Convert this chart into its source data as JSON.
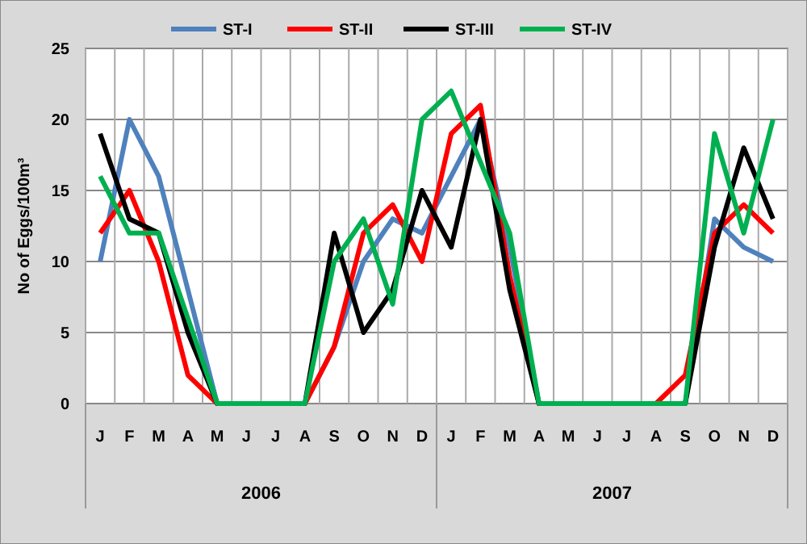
{
  "chart_data": {
    "type": "line",
    "ylabel": "No of Eggs/100m³",
    "categories": [
      "J",
      "F",
      "M",
      "A",
      "M",
      "J",
      "J",
      "A",
      "S",
      "O",
      "N",
      "D",
      "J",
      "F",
      "M",
      "A",
      "M",
      "J",
      "J",
      "A",
      "S",
      "O",
      "N",
      "D"
    ],
    "annotations": [
      "2006",
      "2007"
    ],
    "ylim": [
      0,
      25
    ],
    "yticks": [
      0,
      5,
      10,
      15,
      20,
      25
    ],
    "grid": true,
    "legend": "top",
    "marker": "none",
    "line_style": "solid",
    "series": [
      {
        "name": "ST-I",
        "color": "#4f81bd",
        "values": [
          10,
          20,
          16,
          8,
          0,
          0,
          0,
          0,
          4,
          10,
          13,
          12,
          16,
          20,
          11,
          0,
          0,
          0,
          0,
          0,
          0,
          13,
          11,
          10
        ]
      },
      {
        "name": "ST-II",
        "color": "#ff0000",
        "values": [
          12,
          15,
          10,
          2,
          0,
          0,
          0,
          0,
          4,
          12,
          14,
          10,
          19,
          21,
          9,
          0,
          0,
          0,
          0,
          0,
          2,
          12,
          14,
          12
        ]
      },
      {
        "name": "ST-III",
        "color": "#000000",
        "values": [
          19,
          13,
          12,
          5,
          0,
          0,
          0,
          0,
          12,
          5,
          8,
          15,
          11,
          20,
          8,
          0,
          0,
          0,
          0,
          0,
          0,
          11,
          18,
          13
        ]
      },
      {
        "name": "ST-IV",
        "color": "#00b050",
        "values": [
          16,
          12,
          12,
          6,
          0,
          0,
          0,
          0,
          10,
          13,
          7,
          20,
          22,
          17,
          12,
          0,
          0,
          0,
          0,
          0,
          0,
          19,
          12,
          20
        ]
      }
    ]
  }
}
